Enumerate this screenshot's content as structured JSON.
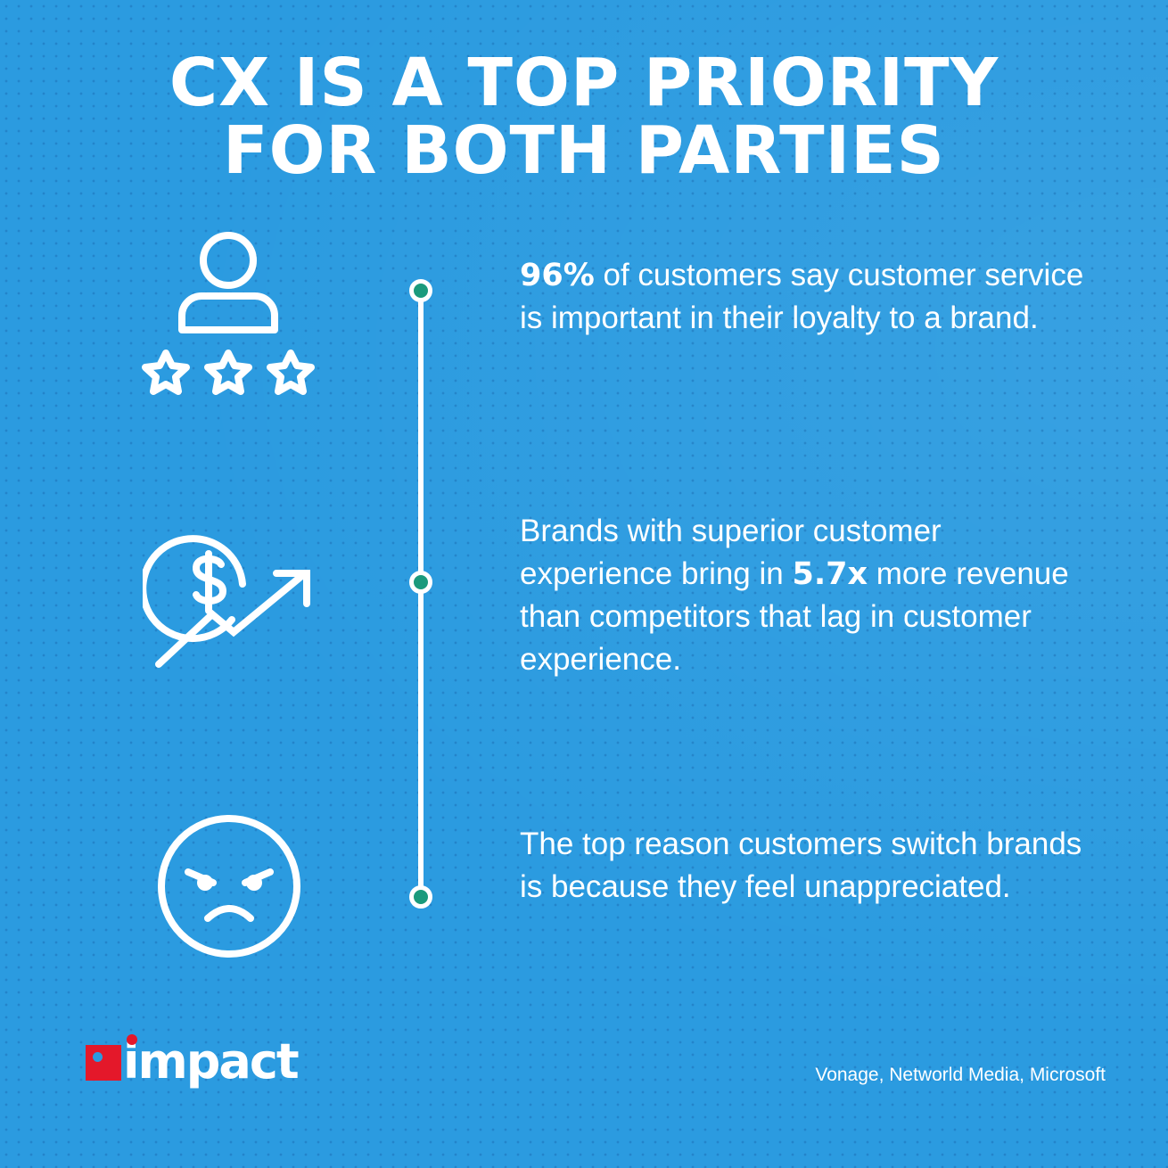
{
  "title": {
    "line1": "CX IS A TOP PRIORITY",
    "line2": "FOR BOTH PARTIES"
  },
  "stats": [
    {
      "icon": "user-rating-icon",
      "bold": "96%",
      "text_after": " of customers say customer service is important in their loyalty to a brand."
    },
    {
      "icon": "revenue-growth-icon",
      "text_before": "Brands with superior customer experience bring in ",
      "bold": "5.7x",
      "text_after": " more revenue than competitors that lag in customer experience."
    },
    {
      "icon": "angry-face-icon",
      "text": "The top reason customers switch brands is because they feel unappreciated."
    }
  ],
  "logo": {
    "text": "impact"
  },
  "source": "Vonage, Networld Media, Microsoft",
  "colors": {
    "background": "#2b9be0",
    "logo_red": "#e4182a",
    "timeline_dot": "#1a9a7c"
  }
}
